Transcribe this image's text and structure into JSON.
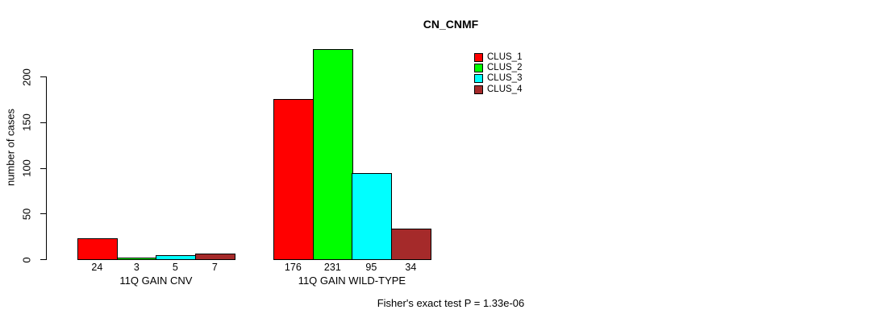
{
  "window": {
    "background": "#FFFFFF"
  },
  "chart_data": {
    "type": "bar",
    "title": "CN_CNMF",
    "ylabel": "number of cases",
    "xlabel": "",
    "categories": [
      "11Q GAIN CNV",
      "11Q GAIN WILD-TYPE"
    ],
    "series": [
      {
        "name": "CLUS_1",
        "color": "#FF0000",
        "values": [
          24,
          176
        ]
      },
      {
        "name": "CLUS_2",
        "color": "#00FF00",
        "values": [
          3,
          231
        ]
      },
      {
        "name": "CLUS_3",
        "color": "#00FFFF",
        "values": [
          5,
          95
        ]
      },
      {
        "name": "CLUS_4",
        "color": "#A52A2A",
        "values": [
          7,
          34
        ]
      }
    ],
    "bar_value_labels": [
      [
        "24",
        "3",
        "5",
        "7"
      ],
      [
        "176",
        "231",
        "95",
        "34"
      ]
    ],
    "yticks": [
      0,
      50,
      100,
      150,
      200
    ],
    "ylim": [
      0,
      240
    ],
    "grid": false,
    "bar_border_color": "#000000",
    "legend_position": "top-right",
    "legend": [
      {
        "label": "CLUS_1",
        "color": "#FF0000"
      },
      {
        "label": "CLUS_2",
        "color": "#00FF00"
      },
      {
        "label": "CLUS_3",
        "color": "#00FFFF"
      },
      {
        "label": "CLUS_4",
        "color": "#A52A2A"
      }
    ],
    "annotation": "Fisher's exact test P = 1.33e-06"
  }
}
